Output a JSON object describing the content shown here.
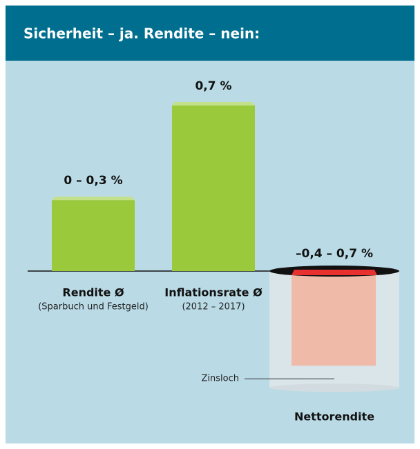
{
  "chart_data": {
    "type": "bar",
    "title": "Sicherheit – ja. Rendite – nein:",
    "categories": [
      "Rendite Ø",
      "Inflationsrate Ø",
      "Nettorendite"
    ],
    "category_notes": [
      "(Sparbuch und Festgeld)",
      "(2012 – 2017)",
      null
    ],
    "values": [
      0.3,
      0.7,
      -0.4
    ],
    "value_labels": [
      "0 – 0,3 %",
      "0,7 %",
      "–0,4 – 0,7 %"
    ],
    "colors": [
      "#9bc93c",
      "#9bc93c",
      "#efbba8"
    ],
    "annotation": "Zinsloch",
    "ylim": [
      -0.5,
      0.8
    ]
  }
}
